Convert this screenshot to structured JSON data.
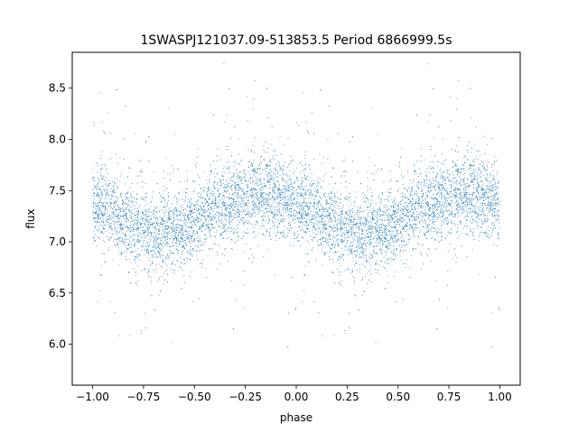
{
  "chart_data": {
    "type": "scatter",
    "title": "1SWASPJ121037.09-513853.5 Period 6866999.5s",
    "xlabel": "phase",
    "ylabel": "flux",
    "xlim": [
      -1.1,
      1.1
    ],
    "ylim": [
      5.6,
      8.85
    ],
    "xticks": [
      -1.0,
      -0.75,
      -0.5,
      -0.25,
      0.0,
      0.25,
      0.5,
      0.75,
      1.0
    ],
    "xtick_labels": [
      "−1.00",
      "−0.75",
      "−0.50",
      "−0.25",
      "0.00",
      "0.25",
      "0.50",
      "0.75",
      "1.00"
    ],
    "yticks": [
      6.0,
      6.5,
      7.0,
      7.5,
      8.0,
      8.5
    ],
    "ytick_labels": [
      "6.0",
      "6.5",
      "7.0",
      "7.5",
      "8.0",
      "8.5"
    ],
    "grid": false,
    "marker_color": "#1f77b4",
    "phase_profile": {
      "phase": [
        0.0,
        0.05,
        0.1,
        0.15,
        0.2,
        0.25,
        0.3,
        0.35,
        0.4,
        0.45,
        0.5,
        0.55,
        0.6,
        0.65,
        0.7,
        0.75,
        0.8,
        0.85,
        0.9,
        0.95,
        1.0
      ],
      "mean_flux": [
        7.35,
        7.32,
        7.27,
        7.2,
        7.14,
        7.09,
        7.06,
        7.07,
        7.1,
        7.14,
        7.19,
        7.25,
        7.31,
        7.36,
        7.4,
        7.43,
        7.45,
        7.46,
        7.45,
        7.42,
        7.35
      ],
      "scatter": 0.22
    }
  }
}
